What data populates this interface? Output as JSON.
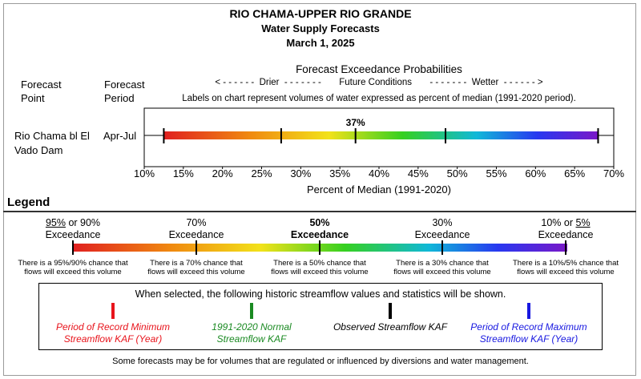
{
  "header": {
    "title": "RIO CHAMA-UPPER RIO GRANDE",
    "subtitle": "Water Supply Forecasts",
    "date": "March 1, 2025"
  },
  "columns": {
    "forecast_point_line1": "Forecast",
    "forecast_point_line2": "Point",
    "forecast_period_line1": "Forecast",
    "forecast_period_line2": "Period"
  },
  "exceedance_header": {
    "title": "Forecast Exceedance Probabilities",
    "direction": "< - - - - - -  Drier  - - - - - - -       Future Conditions       - - - - - - -  Wetter  - - - - - - >",
    "note": "Labels on chart represent volumes of water expressed as percent of median (1991-2020 period)."
  },
  "chart_data": {
    "type": "range",
    "xlabel": "Percent of Median (1991-2020)",
    "xlim": [
      10,
      70
    ],
    "xticks": [
      "10%",
      "15%",
      "20%",
      "25%",
      "30%",
      "35%",
      "40%",
      "45%",
      "50%",
      "55%",
      "60%",
      "65%",
      "70%"
    ],
    "rows": [
      {
        "point_line1": "Rio Chama bl El",
        "point_line2": "Vado Dam",
        "period": "Apr-Jul",
        "exceedance_values": [
          12.5,
          27.5,
          37,
          48.5,
          68
        ],
        "median_label": "37%"
      }
    ]
  },
  "legend": {
    "heading": "Legend",
    "labels": [
      {
        "line1_u": "95%",
        "line1_rest": " or 90%",
        "line2": "Exceedance",
        "bold": false,
        "desc1": "There is a 95%/90% chance that",
        "desc2": "flows will exceed this volume"
      },
      {
        "line1": "70%",
        "line2": "Exceedance",
        "bold": false,
        "desc1": "There is a 70% chance that",
        "desc2": "flows will exceed this volume"
      },
      {
        "line1": "50%",
        "line2": "Exceedance",
        "bold": true,
        "desc1": "There is a 50% chance that",
        "desc2": "flows will exceed this volume"
      },
      {
        "line1": "30%",
        "line2": "Exceedance",
        "bold": false,
        "desc1": "There is a 30% chance that",
        "desc2": "flows will exceed this volume"
      },
      {
        "line1_pre": "10% or ",
        "line1_u": "5%",
        "line2": "Exceedance",
        "bold": false,
        "desc1": "There is a 10%/5% chance that",
        "desc2": "flows will exceed this volume"
      }
    ]
  },
  "historic": {
    "heading": "When selected, the following historic streamflow values and statistics will be shown.",
    "items": [
      {
        "line1": "Period of Record Minimum",
        "line2": "Streamflow KAF (Year)",
        "color": "#e8141c"
      },
      {
        "line1": "1991-2020 Normal",
        "line2": "Streamflow KAF",
        "color": "#1a8a22"
      },
      {
        "line1": "Observed Streamflow KAF",
        "line2": "",
        "color": "#000000"
      },
      {
        "line1": "Period of Record Maximum",
        "line2": "Streamflow KAF (Year)",
        "color": "#1818e0"
      }
    ]
  },
  "footnote": "Some forecasts may be for volumes that are regulated or influenced by diversions and water management."
}
